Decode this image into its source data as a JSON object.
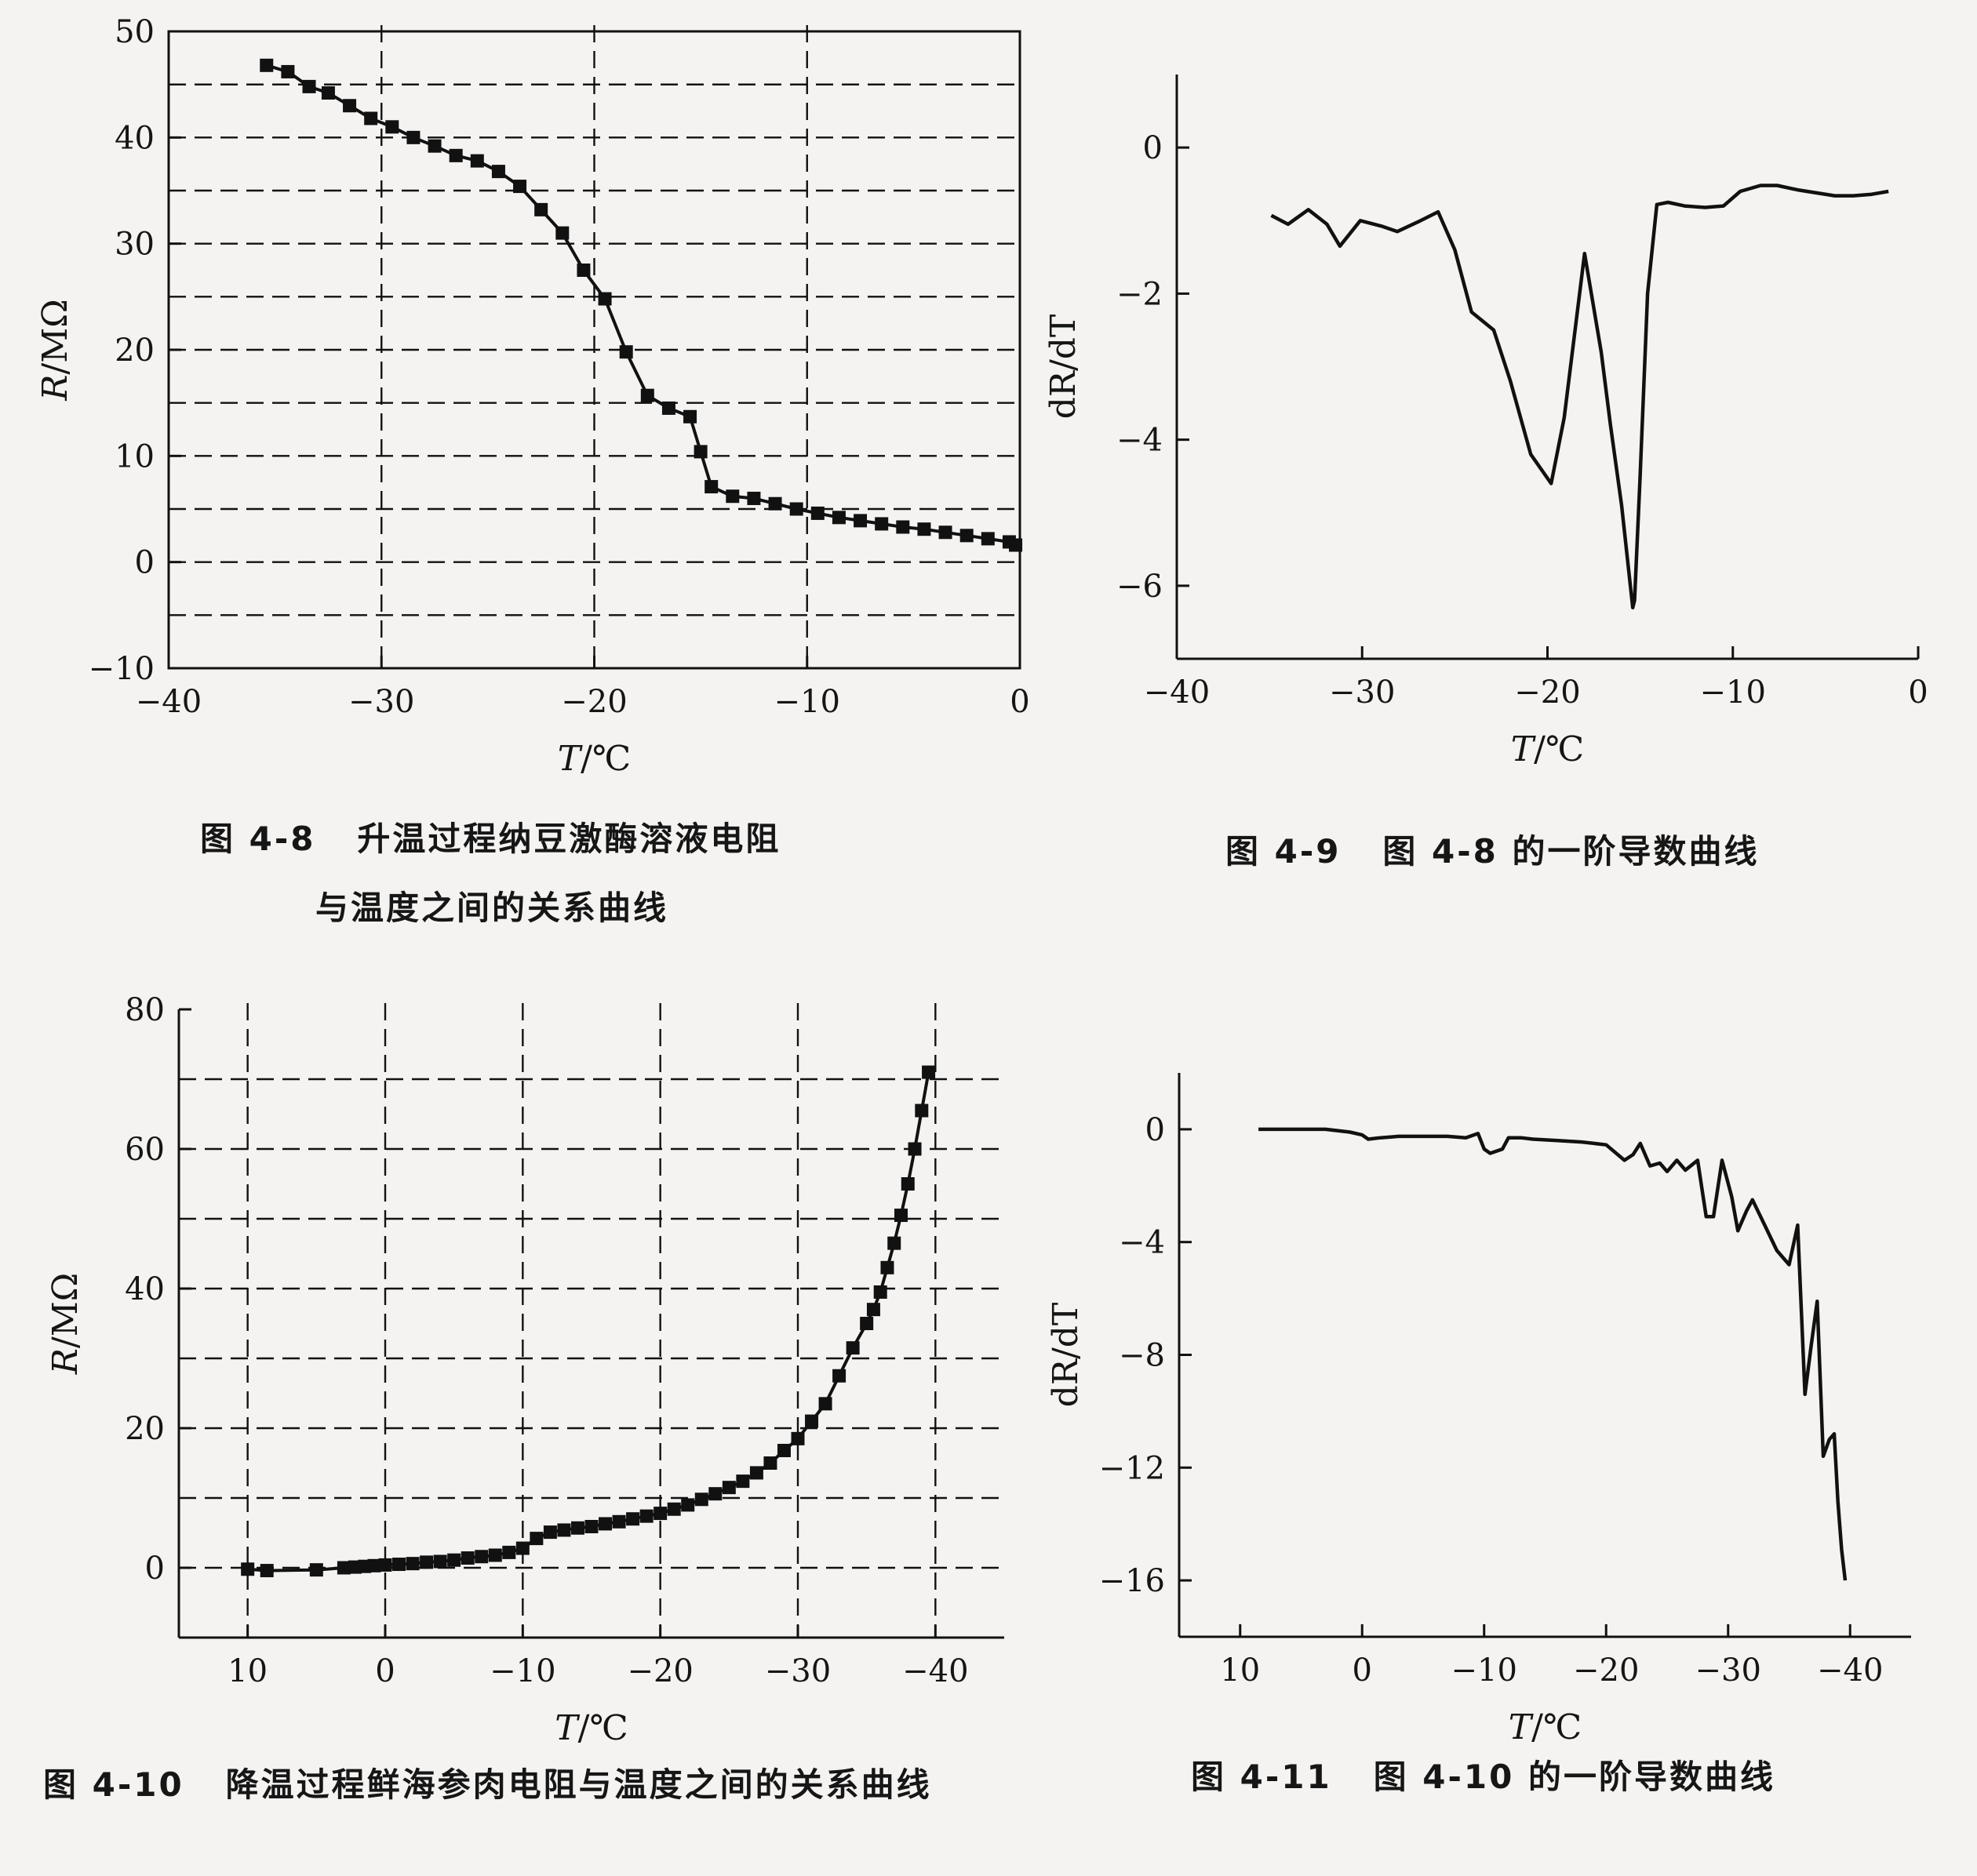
{
  "chart_data": [
    {
      "id": "fig48",
      "type": "line",
      "markers": true,
      "grid": true,
      "caption_number": "图 4-8",
      "caption_lines": [
        "升温过程纳豆激酶溶液电阻",
        "与温度之间的关系曲线"
      ],
      "xlabel_var": "T",
      "xlabel_unit": "/℃",
      "ylabel_var": "R",
      "ylabel_unit": "/MΩ",
      "xlim": [
        -40,
        0
      ],
      "ylim": [
        -10,
        50
      ],
      "xticks": [
        -40,
        -30,
        -20,
        -10,
        0
      ],
      "yticks": [
        50,
        40,
        30,
        20,
        10,
        0,
        -10
      ],
      "xtick_labels": [
        "−40",
        "−30",
        "−20",
        "−10",
        "0"
      ],
      "ytick_labels": [
        "50",
        "40",
        "30",
        "20",
        "10",
        "0",
        "−10"
      ],
      "x": [
        -35.4,
        -34.4,
        -33.4,
        -32.5,
        -31.5,
        -30.5,
        -29.5,
        -28.5,
        -27.5,
        -26.5,
        -25.5,
        -24.5,
        -23.5,
        -22.5,
        -21.5,
        -20.5,
        -19.5,
        -18.5,
        -17.5,
        -16.5,
        -15.5,
        -15.0,
        -14.5,
        -13.5,
        -12.5,
        -11.5,
        -10.5,
        -9.5,
        -8.5,
        -7.5,
        -6.5,
        -5.5,
        -4.5,
        -3.5,
        -2.5,
        -1.5,
        -0.5,
        -0.2
      ],
      "y": [
        46.8,
        46.2,
        44.8,
        44.2,
        43.0,
        41.8,
        41.0,
        40.0,
        39.2,
        38.3,
        37.8,
        36.8,
        35.4,
        33.2,
        31.0,
        27.5,
        24.8,
        19.8,
        15.7,
        14.5,
        13.7,
        10.4,
        7.1,
        6.2,
        6.0,
        5.5,
        5.0,
        4.6,
        4.2,
        3.9,
        3.6,
        3.3,
        3.1,
        2.8,
        2.5,
        2.2,
        1.9,
        1.6
      ]
    },
    {
      "id": "fig49",
      "type": "line",
      "markers": false,
      "grid": false,
      "caption_number": "图 4-9",
      "caption_lines": [
        "图 4-8 的一阶导数曲线"
      ],
      "xlabel_var": "T",
      "xlabel_unit": "/℃",
      "ylabel_text": "dR/dT",
      "xlim": [
        -40,
        0
      ],
      "ylim": [
        -7,
        1
      ],
      "xticks": [
        -40,
        -30,
        -20,
        -10,
        0
      ],
      "yticks": [
        0,
        -2,
        -4,
        -6
      ],
      "xtick_labels": [
        "−40",
        "−30",
        "−20",
        "−10",
        "0"
      ],
      "ytick_labels": [
        "0",
        "−2",
        "−4",
        "−6"
      ],
      "x": [
        -34.9,
        -34.0,
        -32.9,
        -31.9,
        -31.2,
        -30.1,
        -28.9,
        -28.1,
        -27.0,
        -25.9,
        -25.0,
        -24.1,
        -22.9,
        -22.0,
        -20.9,
        -19.8,
        -19.1,
        -18.0,
        -17.1,
        -16.6,
        -16.0,
        -15.4,
        -15.3,
        -15.0,
        -14.6,
        -14.1,
        -13.5,
        -12.6,
        -11.5,
        -10.5,
        -9.6,
        -8.5,
        -7.6,
        -6.5,
        -5.5,
        -4.5,
        -3.5,
        -2.5,
        -1.6
      ],
      "y": [
        -0.93,
        -1.05,
        -0.85,
        -1.05,
        -1.35,
        -1.0,
        -1.08,
        -1.15,
        -1.02,
        -0.88,
        -1.4,
        -2.25,
        -2.5,
        -3.2,
        -4.2,
        -4.6,
        -3.7,
        -1.45,
        -2.8,
        -3.8,
        -4.9,
        -6.3,
        -6.2,
        -4.5,
        -2.0,
        -0.78,
        -0.75,
        -0.8,
        -0.82,
        -0.8,
        -0.6,
        -0.52,
        -0.52,
        -0.58,
        -0.62,
        -0.66,
        -0.66,
        -0.64,
        -0.6
      ]
    },
    {
      "id": "fig410",
      "type": "line",
      "markers": true,
      "grid": true,
      "caption_number": "图 4-10",
      "caption_lines": [
        "降温过程鲜海参肉电阻与温度之间的关系曲线"
      ],
      "xlabel_var": "T",
      "xlabel_unit": "/℃",
      "ylabel_var": "R",
      "ylabel_unit": "/MΩ",
      "xlim": [
        15,
        -45
      ],
      "ylim": [
        -10,
        80
      ],
      "xticks": [
        10,
        0,
        -10,
        -20,
        -30,
        -40
      ],
      "yticks": [
        80,
        60,
        40,
        20,
        0
      ],
      "xtick_labels": [
        "10",
        "0",
        "−10",
        "−20",
        "−30",
        "−40"
      ],
      "ytick_labels": [
        "80",
        "60",
        "40",
        "20",
        "0"
      ],
      "x": [
        10.0,
        8.6,
        5.0,
        3.0,
        2.2,
        1.5,
        0.8,
        0.0,
        -1.0,
        -2.0,
        -3.0,
        -4.0,
        -5.0,
        -6.0,
        -7.0,
        -8.0,
        -9.0,
        -10.0,
        -11.0,
        -12.0,
        -13.0,
        -14.0,
        -15.0,
        -16.0,
        -17.0,
        -18.0,
        -19.0,
        -20.0,
        -21.0,
        -22.0,
        -23.0,
        -24.0,
        -25.0,
        -26.0,
        -27.0,
        -28.0,
        -29.0,
        -30.0,
        -31.0,
        -32.0,
        -33.0,
        -34.0,
        -35.0,
        -35.5,
        -36.0,
        -36.5,
        -37.0,
        -37.5,
        -38.0,
        -38.5,
        -39.0,
        -39.5
      ],
      "y": [
        -0.2,
        -0.4,
        -0.3,
        0.0,
        0.1,
        0.2,
        0.3,
        0.4,
        0.5,
        0.6,
        0.8,
        0.9,
        1.1,
        1.4,
        1.6,
        1.8,
        2.2,
        2.8,
        4.2,
        5.1,
        5.4,
        5.7,
        5.9,
        6.3,
        6.6,
        7.0,
        7.4,
        7.8,
        8.4,
        9.0,
        9.8,
        10.6,
        11.5,
        12.4,
        13.6,
        15.0,
        16.8,
        18.5,
        21.0,
        23.5,
        27.5,
        31.5,
        35.0,
        37.0,
        39.5,
        43.0,
        46.5,
        50.5,
        55.0,
        60.0,
        65.5,
        71.0
      ]
    },
    {
      "id": "fig411",
      "type": "line",
      "markers": false,
      "grid": false,
      "caption_number": "图 4-11",
      "caption_lines": [
        "图 4-10 的一阶导数曲线"
      ],
      "xlabel_var": "T",
      "xlabel_unit": "/℃",
      "ylabel_text": "dR/dT",
      "xlim": [
        15,
        -45
      ],
      "ylim": [
        -18,
        2
      ],
      "xticks": [
        10,
        0,
        -10,
        -20,
        -30,
        -40
      ],
      "yticks": [
        0,
        -4,
        -8,
        -12,
        -16
      ],
      "xtick_labels": [
        "10",
        "0",
        "−10",
        "−20",
        "−30",
        "−40"
      ],
      "ytick_labels": [
        "0",
        "−4",
        "−8",
        "−12",
        "−16"
      ],
      "x": [
        8.5,
        7.0,
        5.0,
        3.0,
        1.0,
        0.0,
        -0.5,
        -1.5,
        -3.0,
        -5.0,
        -7.0,
        -8.5,
        -9.5,
        -10.0,
        -10.5,
        -11.5,
        -12.0,
        -13.0,
        -14.0,
        -16.0,
        -18.0,
        -20.0,
        -21.5,
        -22.2,
        -22.8,
        -23.6,
        -24.4,
        -25.0,
        -25.8,
        -26.5,
        -27.5,
        -28.2,
        -28.8,
        -29.5,
        -30.3,
        -30.8,
        -31.5,
        -32.0,
        -33.0,
        -34.0,
        -35.0,
        -35.7,
        -36.3,
        -36.8,
        -37.3,
        -37.8,
        -38.3,
        -38.7,
        -39.0,
        -39.3,
        -39.6
      ],
      "y": [
        0.0,
        0.0,
        0.0,
        0.0,
        -0.1,
        -0.2,
        -0.35,
        -0.3,
        -0.25,
        -0.25,
        -0.25,
        -0.3,
        -0.15,
        -0.7,
        -0.85,
        -0.7,
        -0.3,
        -0.3,
        -0.35,
        -0.4,
        -0.45,
        -0.55,
        -1.1,
        -0.9,
        -0.5,
        -1.3,
        -1.2,
        -1.5,
        -1.1,
        -1.45,
        -1.1,
        -3.1,
        -3.1,
        -1.1,
        -2.4,
        -3.6,
        -2.9,
        -2.5,
        -3.4,
        -4.3,
        -4.8,
        -3.4,
        -9.4,
        -7.7,
        -6.1,
        -11.6,
        -11.0,
        -10.8,
        -13.2,
        -14.9,
        -16.0
      ]
    }
  ]
}
